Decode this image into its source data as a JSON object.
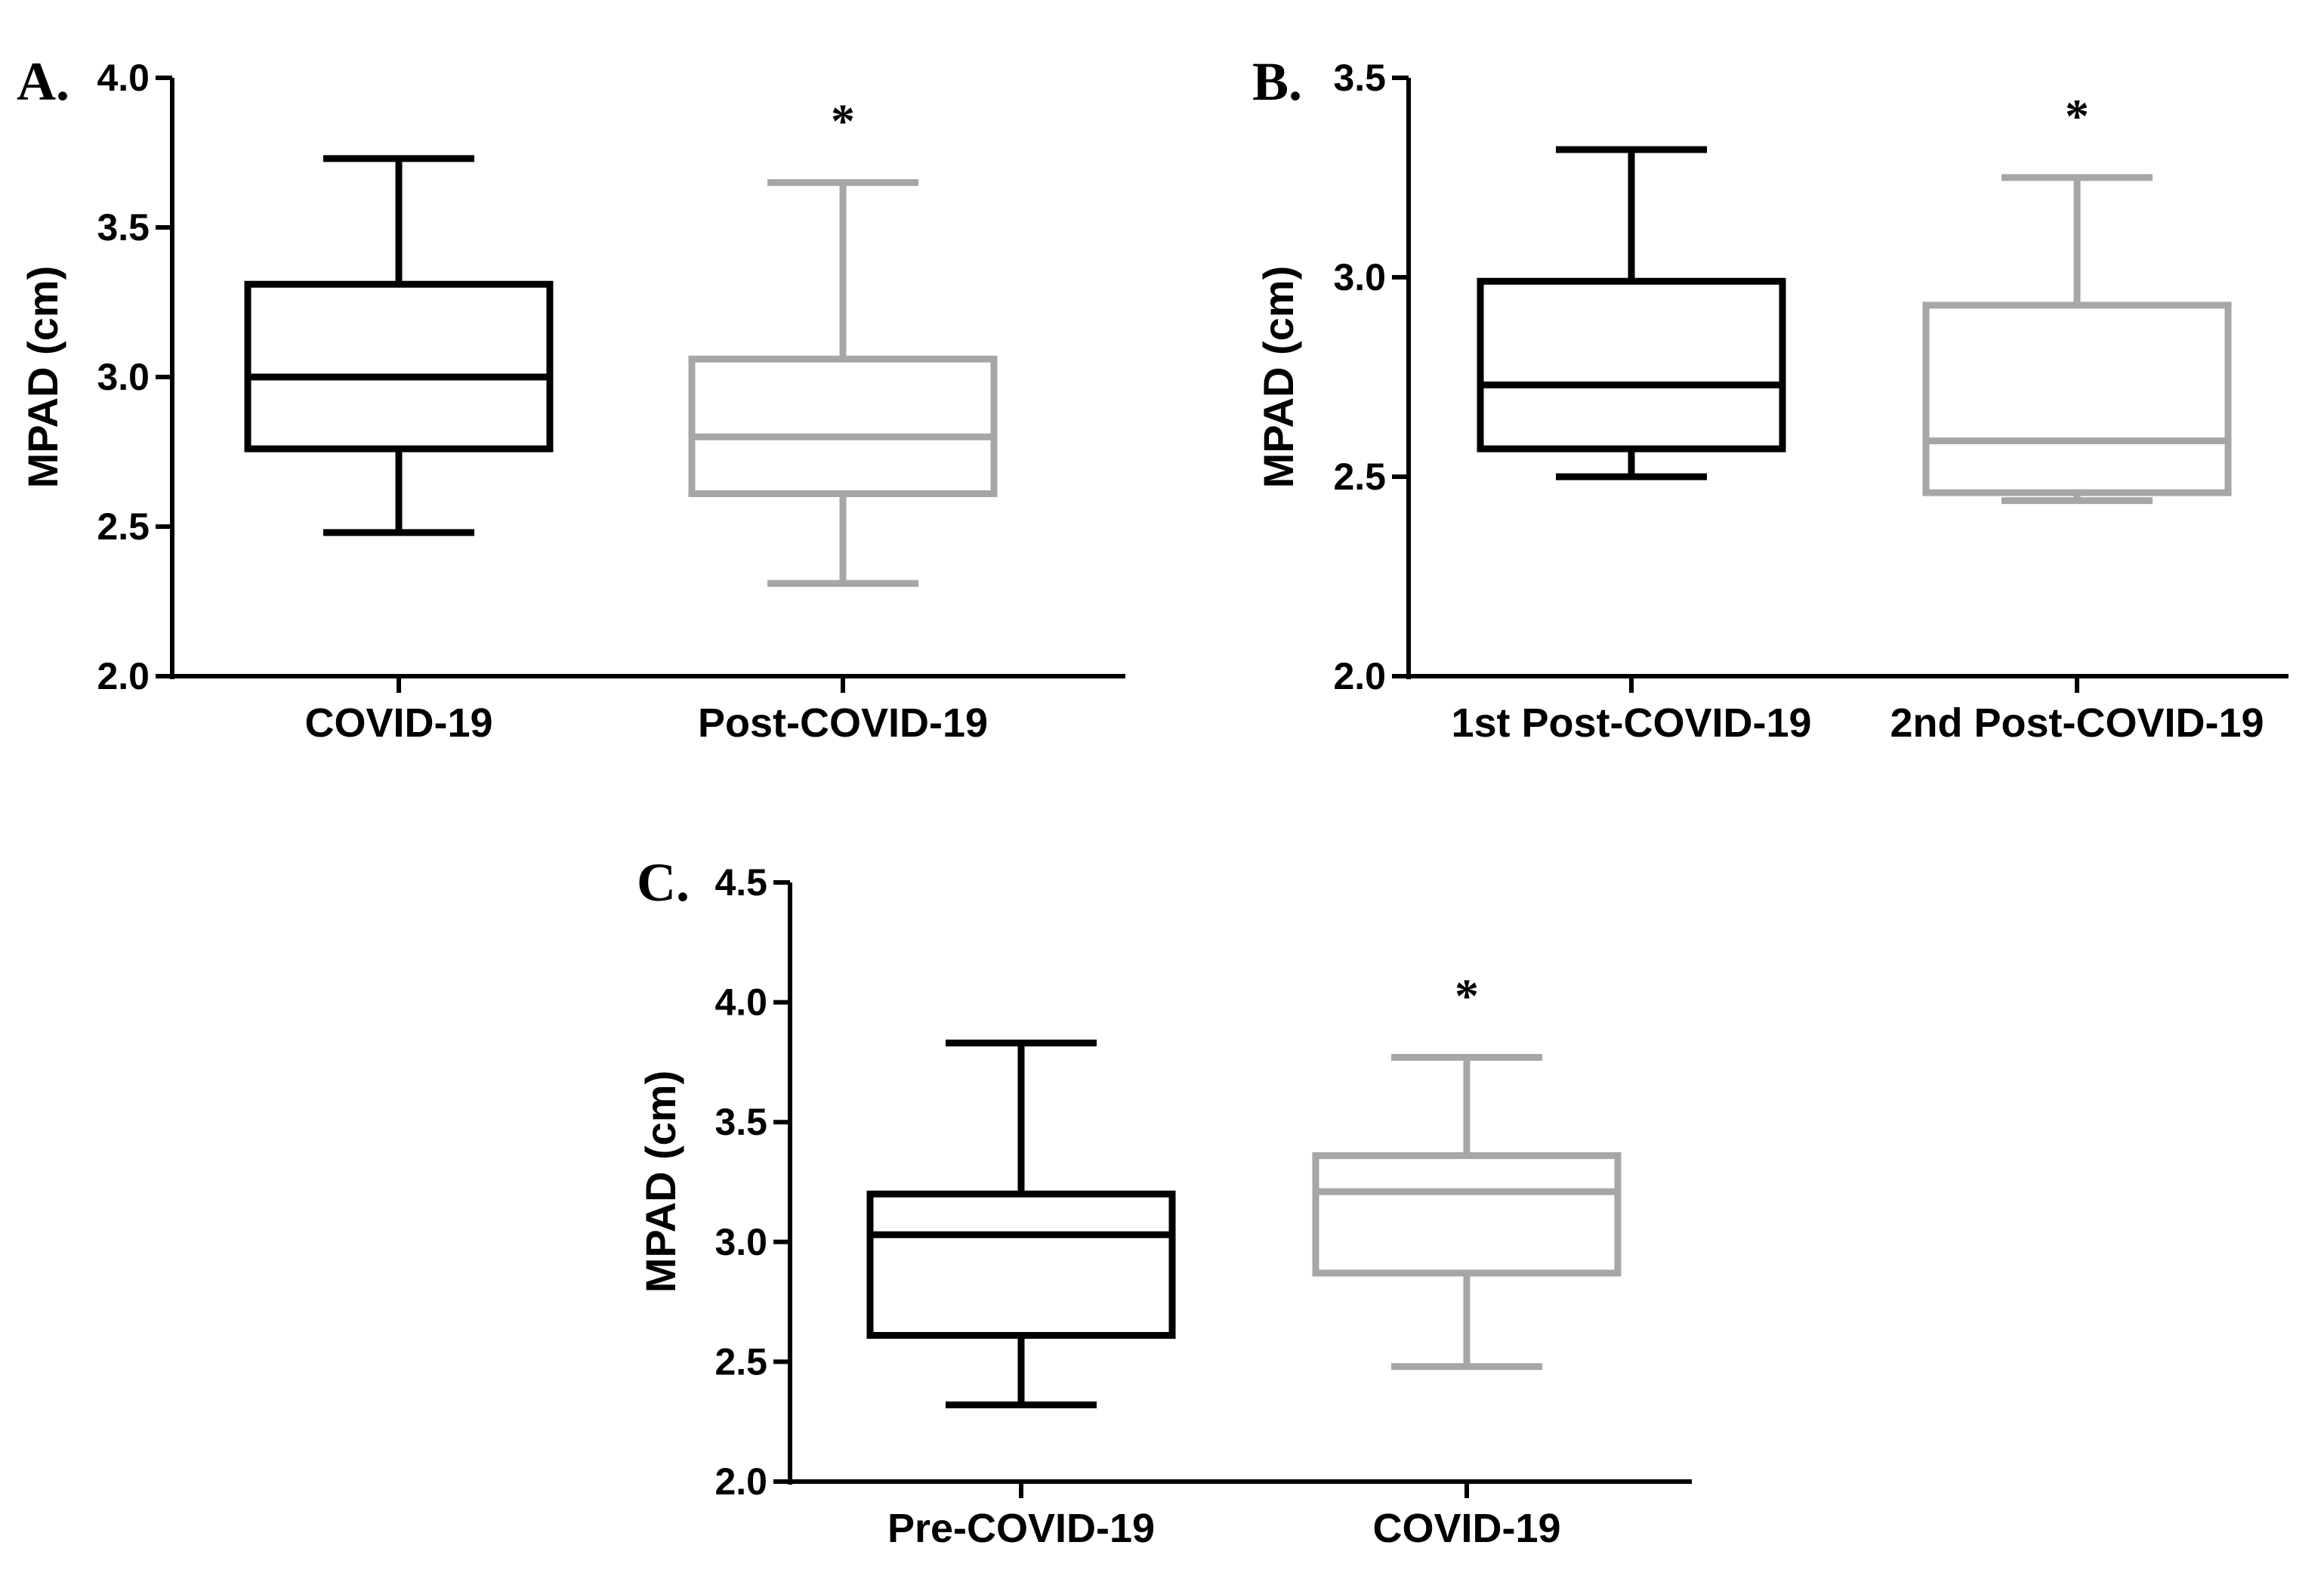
{
  "chart_data": [
    {
      "type": "box",
      "panel": "A.",
      "ylabel": "MPAD (cm)",
      "ylim": [
        2.0,
        4.0
      ],
      "yticks": [
        "2.0",
        "2.5",
        "3.0",
        "3.5",
        "4.0"
      ],
      "series": [
        {
          "name": "COVID-19",
          "color": "#000000",
          "whisker_low": 2.48,
          "q1": 2.76,
          "median": 3.0,
          "q3": 3.31,
          "whisker_high": 3.73,
          "significance": ""
        },
        {
          "name": "Post-COVID-19",
          "color": "#a6a6a6",
          "whisker_low": 2.31,
          "q1": 2.61,
          "median": 2.8,
          "q3": 3.06,
          "whisker_high": 3.65,
          "significance": "*"
        }
      ]
    },
    {
      "type": "box",
      "panel": "B.",
      "ylabel": "MPAD (cm)",
      "ylim": [
        2.0,
        3.5
      ],
      "yticks": [
        "2.0",
        "2.5",
        "3.0",
        "3.5"
      ],
      "series": [
        {
          "name": "1st Post-COVID-19",
          "color": "#000000",
          "whisker_low": 2.5,
          "q1": 2.57,
          "median": 2.73,
          "q3": 2.99,
          "whisker_high": 3.32,
          "significance": ""
        },
        {
          "name": "2nd Post-COVID-19",
          "color": "#a6a6a6",
          "whisker_low": 2.44,
          "q1": 2.46,
          "median": 2.59,
          "q3": 2.93,
          "whisker_high": 3.25,
          "significance": "*"
        }
      ]
    },
    {
      "type": "box",
      "panel": "C.",
      "ylabel": "MPAD (cm)",
      "ylim": [
        2.0,
        4.5
      ],
      "yticks": [
        "2.0",
        "2.5",
        "3.0",
        "3.5",
        "4.0",
        "4.5"
      ],
      "series": [
        {
          "name": "Pre-COVID-19",
          "color": "#000000",
          "whisker_low": 2.32,
          "q1": 2.61,
          "median": 3.03,
          "q3": 3.2,
          "whisker_high": 3.83,
          "significance": ""
        },
        {
          "name": "COVID-19",
          "color": "#a6a6a6",
          "whisker_low": 2.48,
          "q1": 2.87,
          "median": 3.21,
          "q3": 3.36,
          "whisker_high": 3.77,
          "significance": "*"
        }
      ]
    }
  ]
}
